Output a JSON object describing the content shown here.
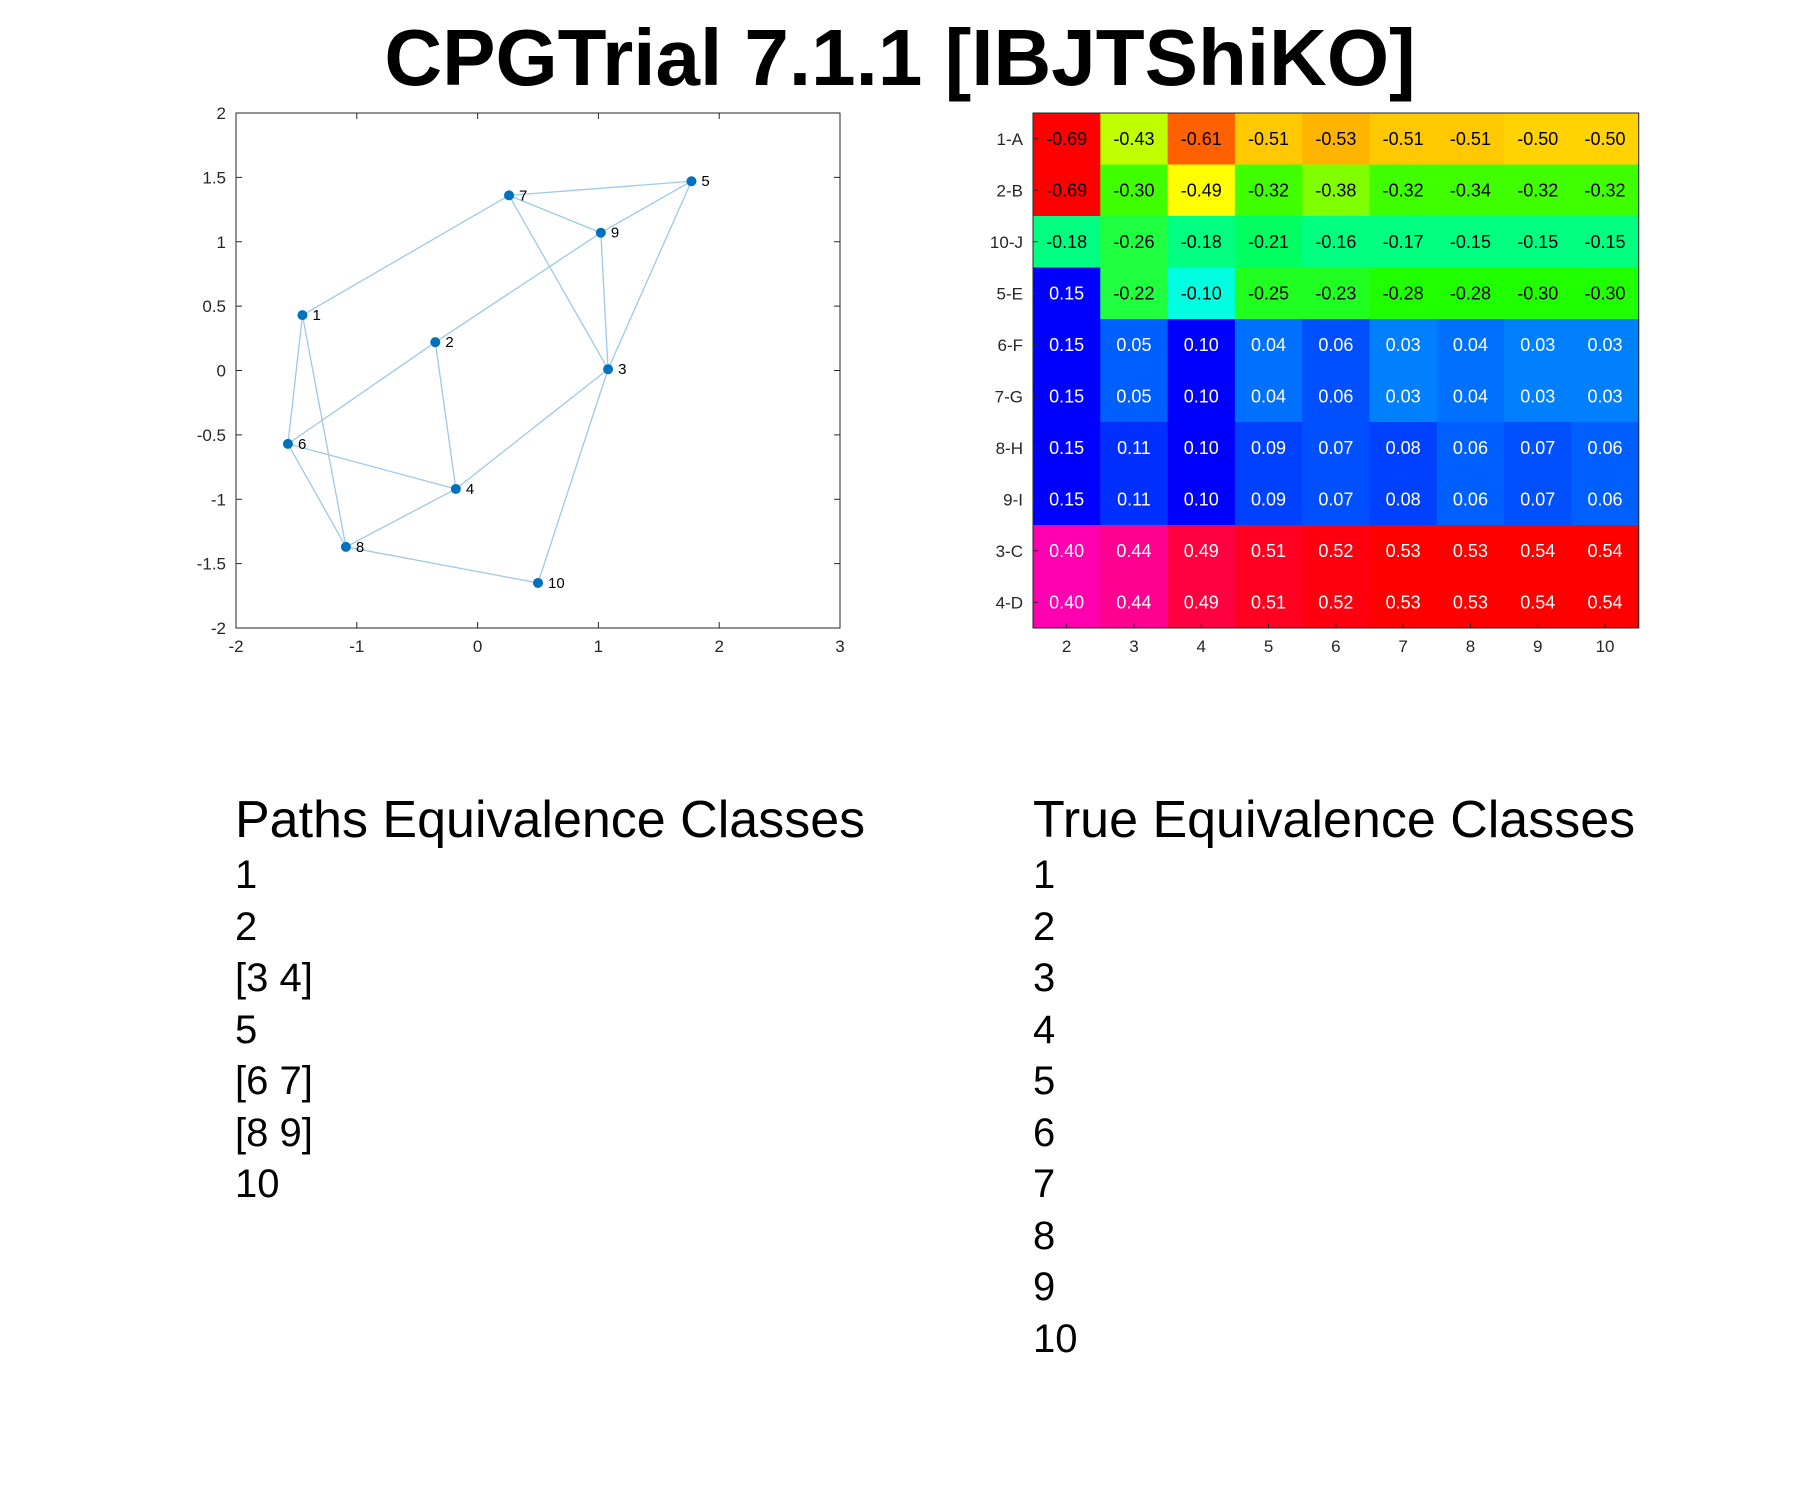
{
  "title": "CPGTrial 7.1.1 [IBJTShiKO]",
  "chart_data": [
    {
      "type": "scatter",
      "subtype": "network-graph",
      "xlim": [
        -2,
        3
      ],
      "ylim": [
        -2,
        2
      ],
      "xticks": [
        "-2",
        "-1",
        "0",
        "1",
        "2",
        "3"
      ],
      "yticks": [
        "2",
        "1.5",
        "1",
        "0.5",
        "0",
        "-0.5",
        "-1",
        "-1.5",
        "-2"
      ],
      "node_color": "#0072bd",
      "edge_color": "#9ec9e6",
      "nodes": [
        {
          "label": "1",
          "x": -1.45,
          "y": 0.43
        },
        {
          "label": "2",
          "x": -0.35,
          "y": 0.22
        },
        {
          "label": "3",
          "x": 1.08,
          "y": 0.01
        },
        {
          "label": "4",
          "x": -0.18,
          "y": -0.92
        },
        {
          "label": "5",
          "x": 1.77,
          "y": 1.47
        },
        {
          "label": "6",
          "x": -1.57,
          "y": -0.57
        },
        {
          "label": "7",
          "x": 0.26,
          "y": 1.36
        },
        {
          "label": "8",
          "x": -1.09,
          "y": -1.37
        },
        {
          "label": "9",
          "x": 1.02,
          "y": 1.07
        },
        {
          "label": "10",
          "x": 0.5,
          "y": -1.65
        }
      ],
      "edges": [
        [
          1,
          7
        ],
        [
          1,
          6
        ],
        [
          1,
          8
        ],
        [
          7,
          5
        ],
        [
          7,
          9
        ],
        [
          7,
          3
        ],
        [
          9,
          5
        ],
        [
          9,
          3
        ],
        [
          9,
          2
        ],
        [
          5,
          3
        ],
        [
          2,
          6
        ],
        [
          2,
          4
        ],
        [
          6,
          4
        ],
        [
          6,
          8
        ],
        [
          4,
          3
        ],
        [
          4,
          8
        ],
        [
          8,
          10
        ],
        [
          3,
          10
        ]
      ]
    },
    {
      "type": "heatmap",
      "row_labels": [
        "1-A",
        "2-B",
        "10-J",
        "5-E",
        "6-F",
        "7-G",
        "8-H",
        "9-I",
        "3-C",
        "4-D"
      ],
      "col_labels": [
        "2",
        "3",
        "4",
        "5",
        "6",
        "7",
        "8",
        "9",
        "10"
      ],
      "values": [
        [
          "-0.69",
          "-0.43",
          "-0.61",
          "-0.51",
          "-0.53",
          "-0.51",
          "-0.51",
          "-0.50",
          "-0.50"
        ],
        [
          "-0.69",
          "-0.30",
          "-0.49",
          "-0.32",
          "-0.38",
          "-0.32",
          "-0.34",
          "-0.32",
          "-0.32"
        ],
        [
          "-0.18",
          "-0.26",
          "-0.18",
          "-0.21",
          "-0.16",
          "-0.17",
          "-0.15",
          "-0.15",
          "-0.15"
        ],
        [
          "0.15",
          "-0.22",
          "-0.10",
          "-0.25",
          "-0.23",
          "-0.28",
          "-0.28",
          "-0.30",
          "-0.30"
        ],
        [
          "0.15",
          "0.05",
          "0.10",
          "0.04",
          "0.06",
          "0.03",
          "0.04",
          "0.03",
          "0.03"
        ],
        [
          "0.15",
          "0.05",
          "0.10",
          "0.04",
          "0.06",
          "0.03",
          "0.04",
          "0.03",
          "0.03"
        ],
        [
          "0.15",
          "0.11",
          "0.10",
          "0.09",
          "0.07",
          "0.08",
          "0.06",
          "0.07",
          "0.06"
        ],
        [
          "0.15",
          "0.11",
          "0.10",
          "0.09",
          "0.07",
          "0.08",
          "0.06",
          "0.07",
          "0.06"
        ],
        [
          "0.40",
          "0.44",
          "0.49",
          "0.51",
          "0.52",
          "0.53",
          "0.53",
          "0.54",
          "0.54"
        ],
        [
          "0.40",
          "0.44",
          "0.49",
          "0.51",
          "0.52",
          "0.53",
          "0.53",
          "0.54",
          "0.54"
        ]
      ],
      "cell_colors": [
        [
          "#ff0000",
          "#bfff00",
          "#ff6000",
          "#ffc800",
          "#ffb400",
          "#ffc800",
          "#ffc800",
          "#ffd200",
          "#ffd200"
        ],
        [
          "#ff0000",
          "#40ff00",
          "#ffff00",
          "#40ff00",
          "#80ff00",
          "#40ff00",
          "#40ff00",
          "#40ff00",
          "#40ff00"
        ],
        [
          "#00ff80",
          "#20ff40",
          "#00ff80",
          "#00ff60",
          "#00ff80",
          "#00ff80",
          "#00ff80",
          "#00ff80",
          "#00ff80"
        ],
        [
          "#0000ff",
          "#20ff40",
          "#00ffe0",
          "#20ff20",
          "#20ff20",
          "#20ff00",
          "#20ff00",
          "#20ff00",
          "#20ff00"
        ],
        [
          "#0000ff",
          "#0060ff",
          "#0000ff",
          "#0070ff",
          "#0050ff",
          "#0080ff",
          "#0070ff",
          "#0080ff",
          "#0080ff"
        ],
        [
          "#0000ff",
          "#0060ff",
          "#0000ff",
          "#0070ff",
          "#0050ff",
          "#0080ff",
          "#0070ff",
          "#0080ff",
          "#0080ff"
        ],
        [
          "#0000ff",
          "#0030ff",
          "#0000ff",
          "#0040ff",
          "#0050ff",
          "#0040ff",
          "#0060ff",
          "#0050ff",
          "#0060ff"
        ],
        [
          "#0000ff",
          "#0030ff",
          "#0000ff",
          "#0040ff",
          "#0050ff",
          "#0040ff",
          "#0060ff",
          "#0050ff",
          "#0060ff"
        ],
        [
          "#ff00b0",
          "#ff0090",
          "#ff0040",
          "#ff0020",
          "#ff0010",
          "#ff0000",
          "#ff0000",
          "#ff0000",
          "#ff0000"
        ],
        [
          "#ff00b0",
          "#ff0090",
          "#ff0040",
          "#ff0020",
          "#ff0010",
          "#ff0000",
          "#ff0000",
          "#ff0000",
          "#ff0000"
        ]
      ],
      "text_colors": [
        [
          "dark",
          "dark",
          "dark",
          "dark",
          "dark",
          "dark",
          "dark",
          "dark",
          "dark"
        ],
        [
          "dark",
          "dark",
          "dark",
          "dark",
          "dark",
          "dark",
          "dark",
          "dark",
          "dark"
        ],
        [
          "dark",
          "dark",
          "dark",
          "dark",
          "dark",
          "dark",
          "dark",
          "dark",
          "dark"
        ],
        [
          "light",
          "dark",
          "dark",
          "dark",
          "dark",
          "dark",
          "dark",
          "dark",
          "dark"
        ],
        [
          "light",
          "light",
          "light",
          "light",
          "light",
          "light",
          "light",
          "light",
          "light"
        ],
        [
          "light",
          "light",
          "light",
          "light",
          "light",
          "light",
          "light",
          "light",
          "light"
        ],
        [
          "light",
          "light",
          "light",
          "light",
          "light",
          "light",
          "light",
          "light",
          "light"
        ],
        [
          "light",
          "light",
          "light",
          "light",
          "light",
          "light",
          "light",
          "light",
          "light"
        ],
        [
          "light",
          "light",
          "light",
          "light",
          "light",
          "light",
          "light",
          "light",
          "light"
        ],
        [
          "light",
          "light",
          "light",
          "light",
          "light",
          "light",
          "light",
          "light",
          "light"
        ]
      ]
    }
  ],
  "paths_classes": {
    "heading": "Paths Equivalence Classes",
    "items": [
      "1",
      "2",
      "[3 4]",
      "5",
      "[6 7]",
      "[8 9]",
      "10"
    ]
  },
  "true_classes": {
    "heading": "True Equivalence Classes",
    "items": [
      "1",
      "2",
      "3",
      "4",
      "5",
      "6",
      "7",
      "8",
      "9",
      "10"
    ]
  }
}
